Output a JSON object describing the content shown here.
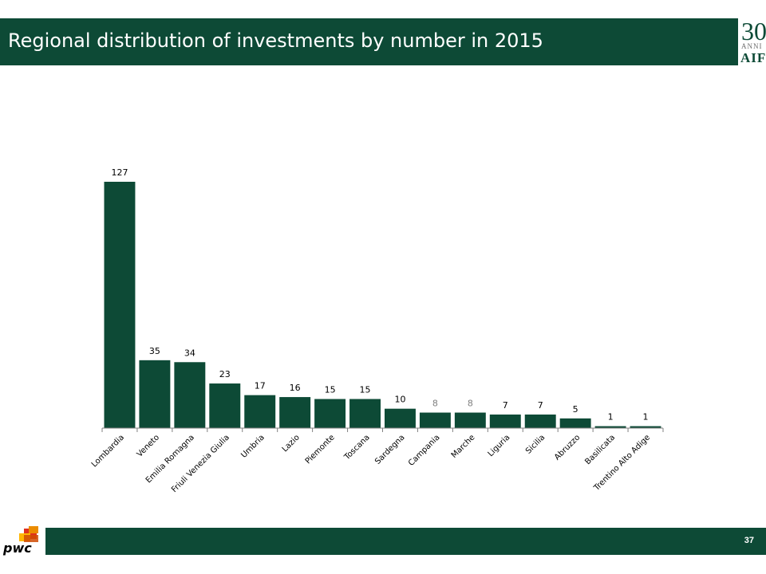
{
  "header": {
    "title": "Regional distribution of investments by number in 2015"
  },
  "logo": {
    "number": "30",
    "anni": "ANNI",
    "name": "AIFI"
  },
  "footer": {
    "page_number": "37",
    "brand": "pwc"
  },
  "colors": {
    "brand": "#0d4a36",
    "bar": "#0d4a36",
    "label": "#000000",
    "label_light": "#7f7f7f",
    "axis": "#808080"
  },
  "chart_data": {
    "type": "bar",
    "title": "",
    "xlabel": "",
    "ylabel": "",
    "categories": [
      "Lombardia",
      "Veneto",
      "Emilia Romagna",
      "Friuli Venezia Giulia",
      "Umbria",
      "Lazio",
      "Piemonte",
      "Toscana",
      "Sardegna",
      "Campania",
      "Marche",
      "Liguria",
      "Sicilia",
      "Abruzzo",
      "Basilicata",
      "Trentino Alto Adige"
    ],
    "values": [
      127,
      35,
      34,
      23,
      17,
      16,
      15,
      15,
      10,
      8,
      8,
      7,
      7,
      5,
      1,
      1
    ],
    "data_labels": [
      "127",
      "35",
      "34",
      "23",
      "17",
      "16",
      "15",
      "15",
      "10",
      "8",
      "8",
      "7",
      "7",
      "5",
      "1",
      "1"
    ],
    "light_labels": [
      9,
      10
    ],
    "ylim": [
      0,
      127
    ],
    "grid": false,
    "legend": "none"
  }
}
